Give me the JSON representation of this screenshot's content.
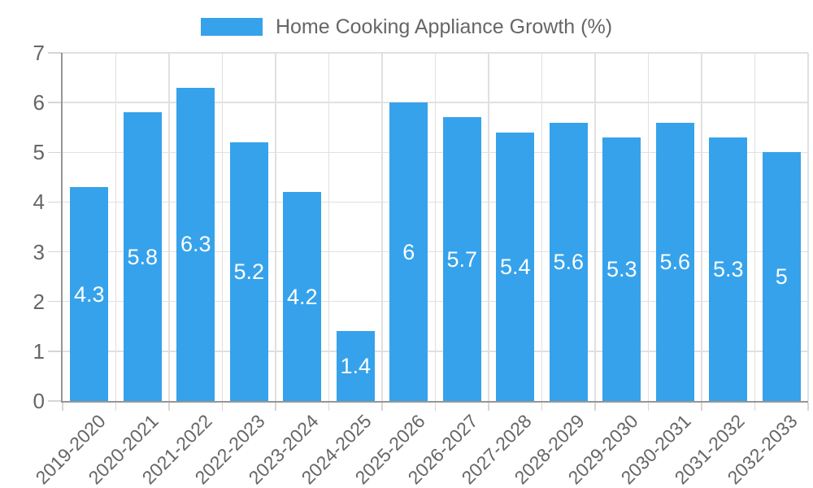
{
  "chart_data": {
    "type": "bar",
    "title": "Home Cooking Appliance Growth (%)",
    "legend_position": "top",
    "categories": [
      "2019-2020",
      "2020-2021",
      "2021-2022",
      "2022-2023",
      "2023-2024",
      "2024-2025",
      "2025-2026",
      "2026-2027",
      "2027-2028",
      "2028-2029",
      "2029-2030",
      "2030-2031",
      "2031-2032",
      "2032-2033"
    ],
    "values": [
      4.3,
      5.8,
      6.3,
      5.2,
      4.2,
      1.4,
      6,
      5.7,
      5.4,
      5.6,
      5.3,
      5.6,
      5.3,
      5
    ],
    "value_labels": [
      "4.3",
      "5.8",
      "6.3",
      "5.2",
      "4.2",
      "1.4",
      "6",
      "5.7",
      "5.4",
      "5.6",
      "5.3",
      "5.6",
      "5.3",
      "5"
    ],
    "xlabel": "",
    "ylabel": "",
    "ylim": [
      0,
      7
    ],
    "yticks": [
      0,
      1,
      2,
      3,
      4,
      5,
      6,
      7
    ],
    "grid": true,
    "colors": {
      "bar": "#36A2EB",
      "value_label": "#ffffff",
      "tick_text": "#666666",
      "gridline": "#e0e0e0",
      "tick_mark": "#d6d6d6",
      "axis": "#969696",
      "background": "#ffffff"
    }
  }
}
